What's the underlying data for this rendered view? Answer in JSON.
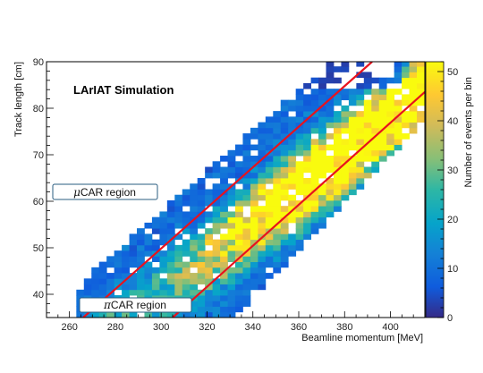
{
  "chart_data": {
    "type": "heatmap",
    "title": "LArIAT Simulation",
    "xlabel": "Beamline momentum [MeV]",
    "ylabel": "Track length [cm]",
    "colorbar_label": "Number of events per bin",
    "xlim": [
      250,
      415
    ],
    "ylim": [
      35,
      90
    ],
    "x_ticks": [
      260,
      280,
      300,
      320,
      340,
      360,
      380,
      400
    ],
    "y_ticks": [
      40,
      50,
      60,
      70,
      80,
      90
    ],
    "z_range": [
      0,
      52
    ],
    "z_ticks": [
      0,
      10,
      20,
      30,
      40,
      50
    ],
    "bins": {
      "x_width": 3.3,
      "y_width": 1.2
    },
    "bands": [
      {
        "name": "muon",
        "p0": [
          300,
          42.9
        ],
        "p1": [
          400,
          81.2
        ],
        "width_y": 3.6,
        "peak": 50
      },
      {
        "name": "pion",
        "p0": [
          300,
          36.5
        ],
        "p1": [
          400,
          73.5
        ],
        "width_y": 3.6,
        "peak": 40
      }
    ],
    "cut_lines": [
      {
        "x": [
          266,
          392
        ],
        "y": [
          35,
          90
        ]
      },
      {
        "x": [
          305,
          415
        ],
        "y": [
          35,
          83.5
        ]
      }
    ],
    "regions": [
      {
        "label": "μCAR region",
        "italic": "μ",
        "rest": "CAR region"
      },
      {
        "label": "πCAR region",
        "italic": "π",
        "rest": "CAR region"
      }
    ],
    "line_color": "#e8121d"
  }
}
